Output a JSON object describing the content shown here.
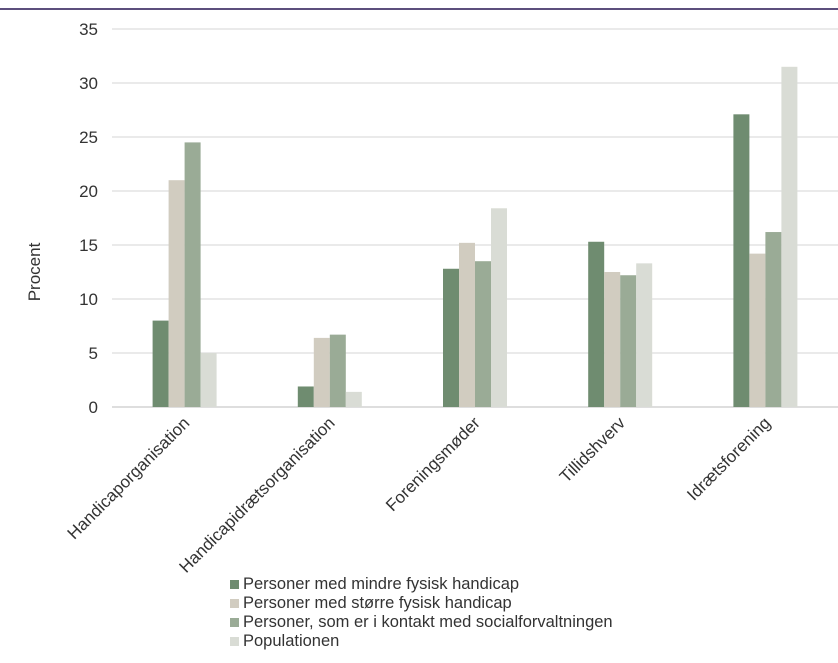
{
  "chart_data": {
    "type": "bar",
    "title": "",
    "xlabel": "",
    "ylabel": "Procent",
    "ylim": [
      0,
      35
    ],
    "yticks": [
      "0",
      "5",
      "10",
      "15",
      "20",
      "25",
      "30",
      "35"
    ],
    "grid": true,
    "legend_position": "bottom",
    "categories": [
      "Handicaporganisation",
      "Handicapidrætsorganisation",
      "Foreningsmøder",
      "Tillidshverv",
      "Idrætsforening"
    ],
    "series": [
      {
        "name": "Personer med mindre fysisk handicap",
        "color": "#6f8c70",
        "values": [
          8.0,
          1.9,
          12.8,
          15.3,
          27.1
        ]
      },
      {
        "name": "Personer med større fysisk handicap",
        "color": "#d1ccc0",
        "values": [
          21.0,
          6.4,
          15.2,
          12.5,
          14.2
        ]
      },
      {
        "name": "Personer, som er i kontakt med socialforvaltningen",
        "color": "#9aab96",
        "values": [
          24.5,
          6.7,
          13.5,
          12.2,
          16.2
        ]
      },
      {
        "name": "Populationen",
        "color": "#d9dcd5",
        "values": [
          5.0,
          1.4,
          18.4,
          13.3,
          31.5
        ]
      }
    ]
  }
}
